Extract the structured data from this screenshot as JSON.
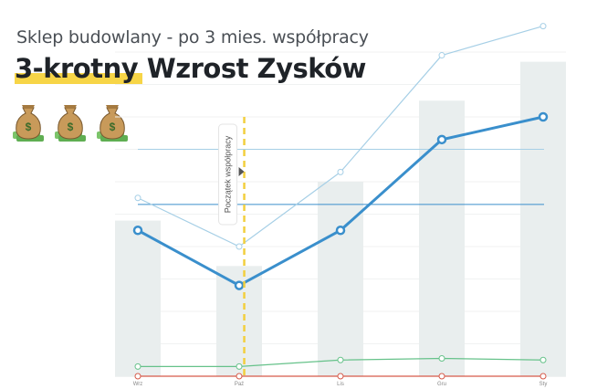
{
  "header": {
    "subtitle": "Sklep budowlany - po 3 mies. współpracy",
    "title": "3-krotny Wzrost Zysków"
  },
  "icons": [
    "money-bag-icon",
    "money-bag-icon",
    "money-bag-icon"
  ],
  "colors": {
    "bars": "#e9eeee",
    "main_line": "#3a8fcc",
    "light_line": "#a6cfe6",
    "green_line": "#66c28a",
    "red_line": "#d65a4a",
    "annotation_line": "#f2cf3e",
    "highlight": "#f7d547"
  },
  "chart_data": {
    "type": "bar",
    "title": "3-krotny Wzrost Zysków",
    "subtitle": "Sklep budowlany - po 3 mies. współpracy",
    "categories": [
      "Wrz",
      "Paź",
      "Lis",
      "Gru",
      "Sty"
    ],
    "ylim": [
      0,
      100
    ],
    "grid": true,
    "series": [
      {
        "type": "bar",
        "values": [
          48,
          34,
          60,
          85,
          97
        ]
      },
      {
        "type": "line",
        "values": [
          45,
          28,
          45,
          73,
          80
        ]
      },
      {
        "type": "line",
        "values": [
          55,
          40,
          63,
          99,
          108
        ]
      },
      {
        "type": "line",
        "values": [
          3,
          3,
          5,
          5.5,
          5
        ]
      },
      {
        "type": "line",
        "values": [
          0,
          0,
          0,
          0,
          0
        ]
      }
    ],
    "reference_lines": [
      70,
      53
    ],
    "annotation": {
      "position": 1.05,
      "label": "Początek współpracy"
    }
  }
}
